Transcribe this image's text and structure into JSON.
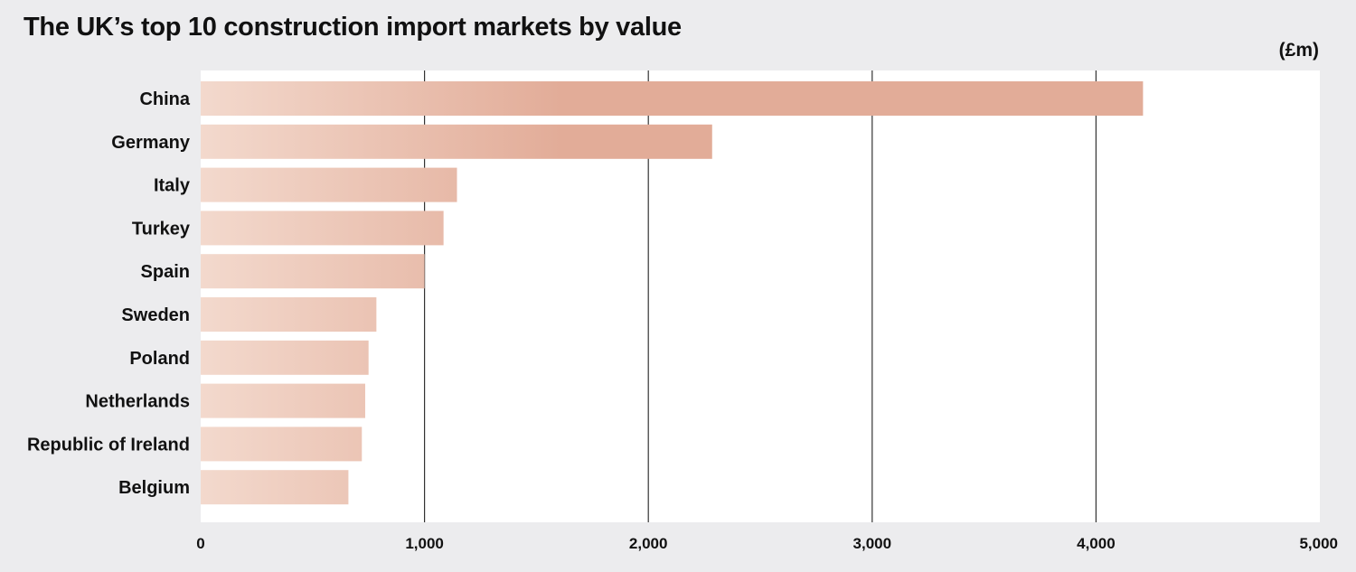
{
  "chart_data": {
    "type": "bar",
    "orientation": "horizontal",
    "title": "The UK’s top 10 construction import markets by value",
    "unit_label": "(£m)",
    "categories": [
      "China",
      "Germany",
      "Italy",
      "Turkey",
      "Spain",
      "Sweden",
      "Poland",
      "Netherlands",
      "Republic of Ireland",
      "Belgium"
    ],
    "values": [
      4210,
      2285,
      1145,
      1085,
      1000,
      785,
      750,
      735,
      720,
      660
    ],
    "xlim": [
      0,
      5000
    ],
    "xticks": [
      0,
      1000,
      2000,
      3000,
      4000,
      5000
    ],
    "xtick_labels": [
      "0",
      "1,000",
      "2,000",
      "3,000",
      "4,000",
      "5,000"
    ],
    "grid": "vertical",
    "colors": {
      "bar_start": "#f3d9cd",
      "bar_end": "#e2ac98",
      "background": "#ececee",
      "plot_background": "#ffffff",
      "gridline": "#333333"
    }
  }
}
